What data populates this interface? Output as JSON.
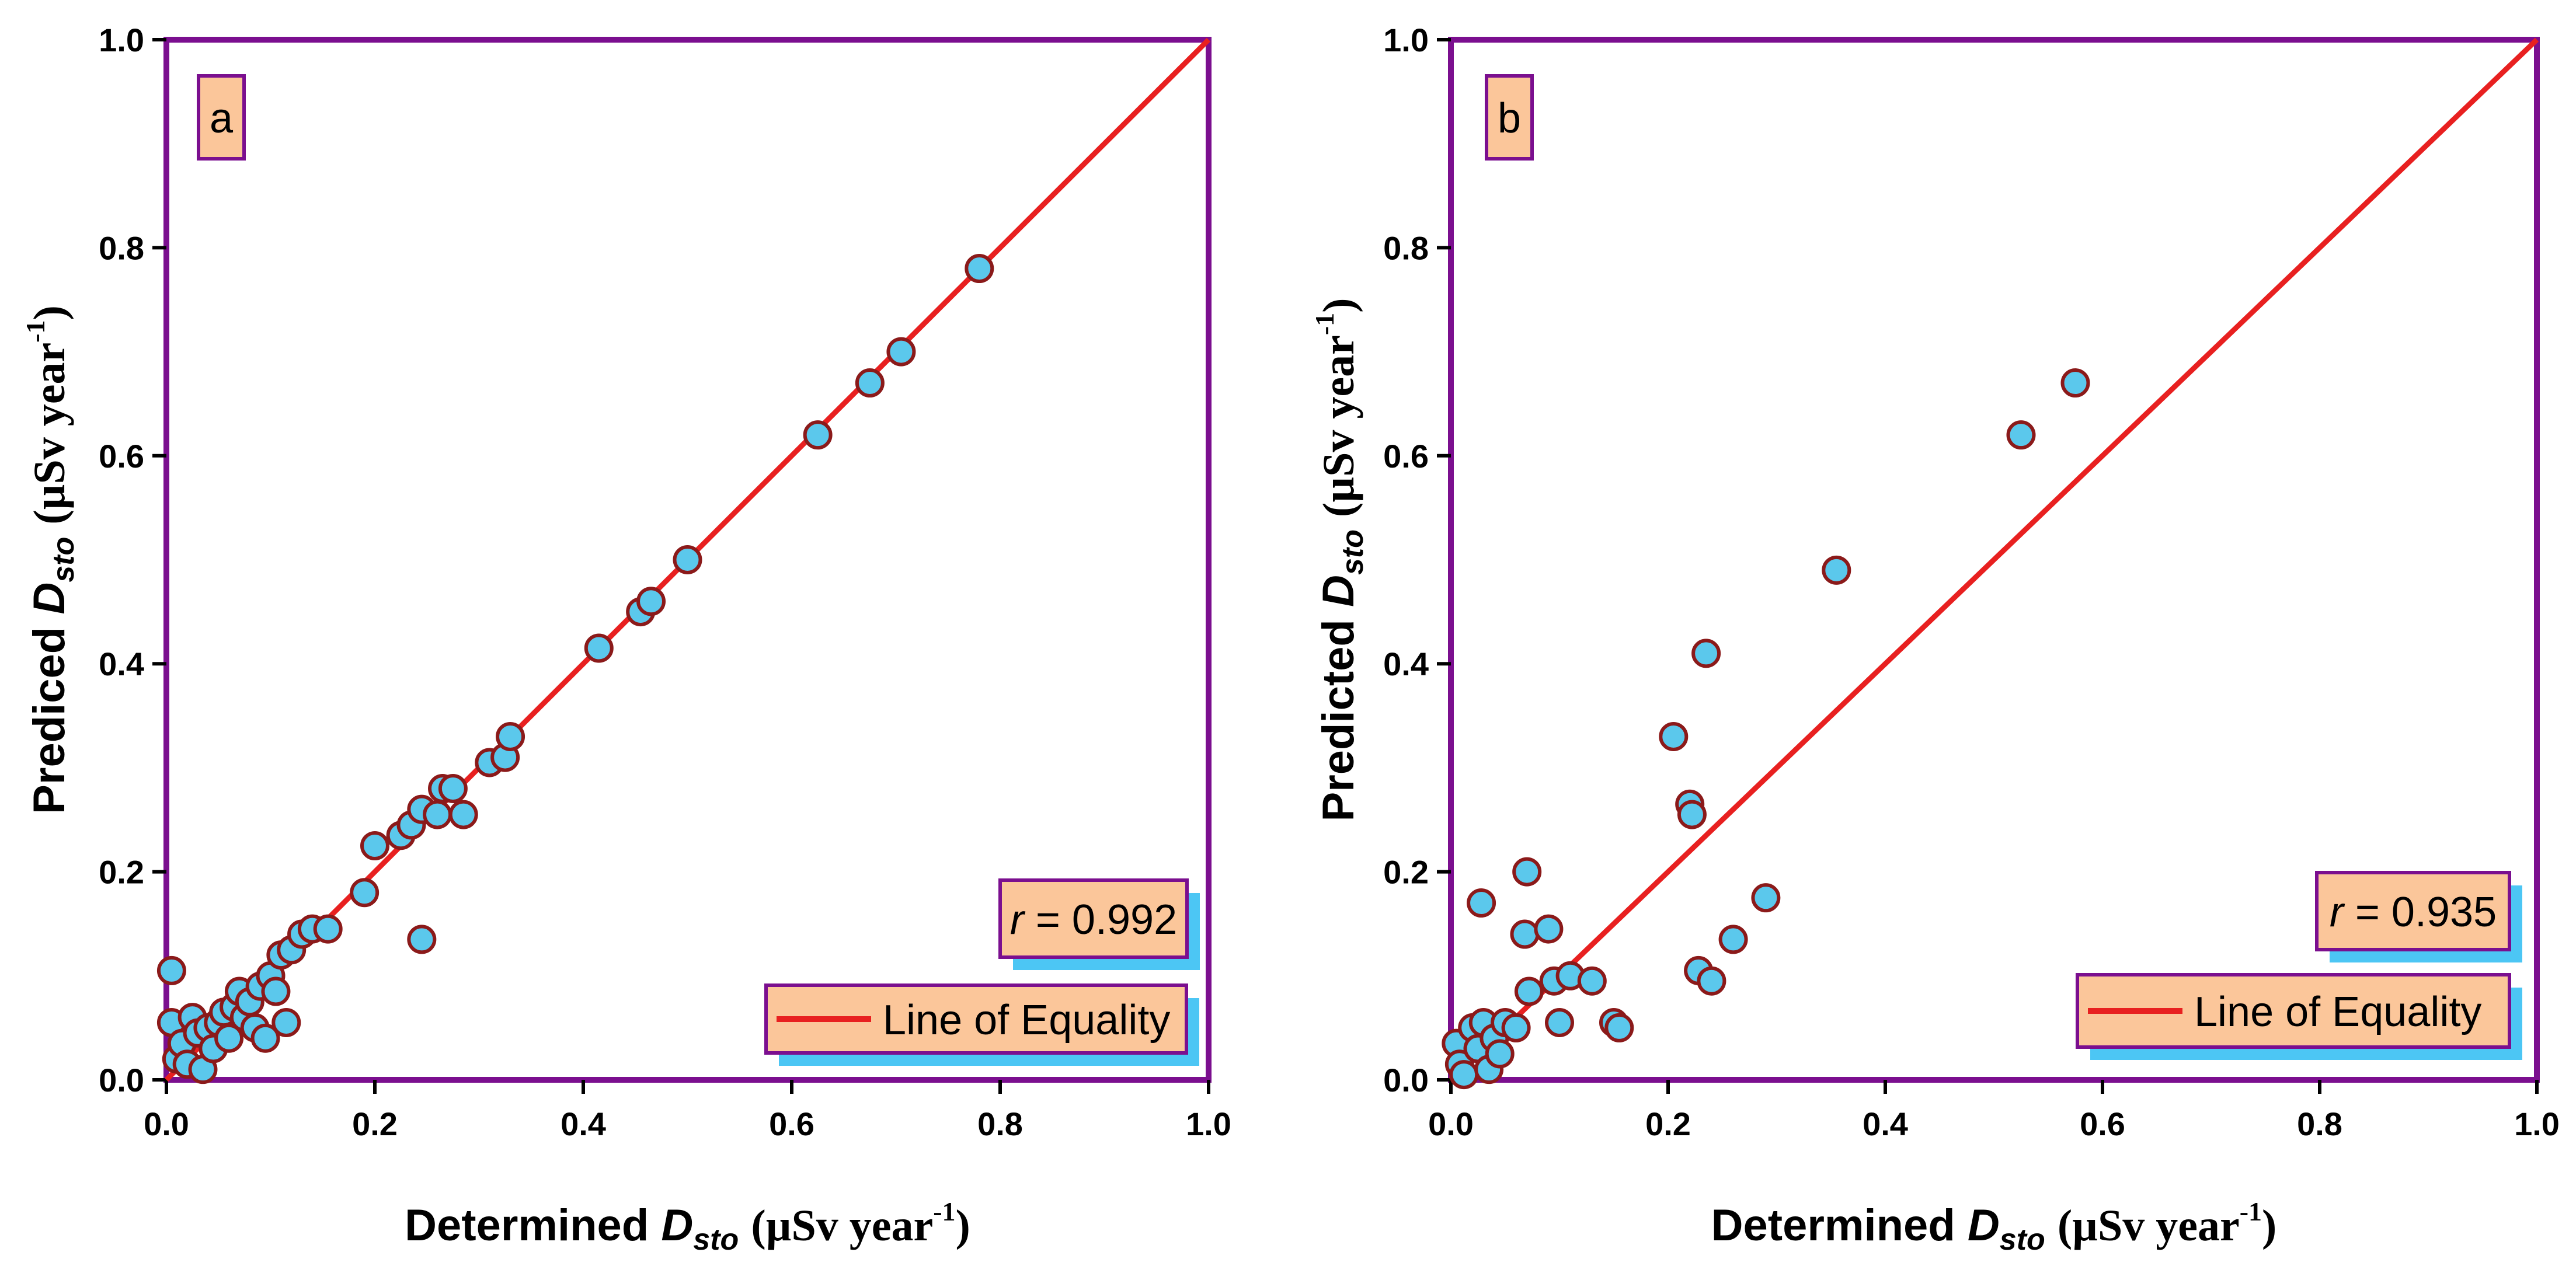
{
  "chart_data": [
    {
      "type": "scatter",
      "panel_label": "a",
      "xlabel_main": "Determined ",
      "xlabel_symbol": "D",
      "xlabel_sub": "sto",
      "xlabel_units": "(µSv year",
      "xlabel_exp": "-1",
      "xlabel_close": ")",
      "ylabel_main": "Prediced ",
      "ylabel_symbol": "D",
      "ylabel_sub": "sto",
      "ylabel_units": "(µSv year",
      "ylabel_exp": "-1",
      "ylabel_close": ")",
      "xlim": [
        0,
        1
      ],
      "ylim": [
        0,
        1
      ],
      "xticks": [
        "0.0",
        "0.2",
        "0.4",
        "0.6",
        "0.8",
        "1.0"
      ],
      "yticks": [
        "0.0",
        "0.2",
        "0.4",
        "0.6",
        "0.8",
        "1.0"
      ],
      "r_symbol": "r",
      "r_text": " = 0.992",
      "legend_label": "Line of Equality",
      "points": [
        [
          0.005,
          0.105
        ],
        [
          0.005,
          0.055
        ],
        [
          0.01,
          0.02
        ],
        [
          0.015,
          0.035
        ],
        [
          0.02,
          0.015
        ],
        [
          0.025,
          0.06
        ],
        [
          0.03,
          0.045
        ],
        [
          0.035,
          0.01
        ],
        [
          0.04,
          0.05
        ],
        [
          0.045,
          0.03
        ],
        [
          0.05,
          0.055
        ],
        [
          0.055,
          0.065
        ],
        [
          0.06,
          0.04
        ],
        [
          0.065,
          0.07
        ],
        [
          0.07,
          0.085
        ],
        [
          0.075,
          0.06
        ],
        [
          0.08,
          0.075
        ],
        [
          0.085,
          0.05
        ],
        [
          0.09,
          0.09
        ],
        [
          0.095,
          0.04
        ],
        [
          0.1,
          0.1
        ],
        [
          0.105,
          0.085
        ],
        [
          0.11,
          0.12
        ],
        [
          0.115,
          0.055
        ],
        [
          0.12,
          0.125
        ],
        [
          0.13,
          0.14
        ],
        [
          0.14,
          0.145
        ],
        [
          0.155,
          0.145
        ],
        [
          0.19,
          0.18
        ],
        [
          0.2,
          0.225
        ],
        [
          0.225,
          0.235
        ],
        [
          0.235,
          0.245
        ],
        [
          0.245,
          0.26
        ],
        [
          0.245,
          0.135
        ],
        [
          0.26,
          0.255
        ],
        [
          0.265,
          0.28
        ],
        [
          0.275,
          0.28
        ],
        [
          0.285,
          0.255
        ],
        [
          0.31,
          0.305
        ],
        [
          0.325,
          0.31
        ],
        [
          0.33,
          0.33
        ],
        [
          0.415,
          0.415
        ],
        [
          0.455,
          0.45
        ],
        [
          0.465,
          0.46
        ],
        [
          0.5,
          0.5
        ],
        [
          0.625,
          0.62
        ],
        [
          0.675,
          0.67
        ],
        [
          0.705,
          0.7
        ],
        [
          0.78,
          0.78
        ]
      ]
    },
    {
      "type": "scatter",
      "panel_label": "b",
      "xlabel_main": "Determined ",
      "xlabel_symbol": "D",
      "xlabel_sub": "sto",
      "xlabel_units": "(µSv year",
      "xlabel_exp": "-1",
      "xlabel_close": ")",
      "ylabel_main": "Predicted ",
      "ylabel_symbol": "D",
      "ylabel_sub": "sto",
      "ylabel_units": "(µSv year",
      "ylabel_exp": "-1",
      "ylabel_close": ")",
      "xlim": [
        0,
        1
      ],
      "ylim": [
        0,
        1
      ],
      "xticks": [
        "0.0",
        "0.2",
        "0.4",
        "0.6",
        "0.8",
        "1.0"
      ],
      "yticks": [
        "0.0",
        "0.2",
        "0.4",
        "0.6",
        "0.8",
        "1.0"
      ],
      "r_symbol": "r",
      "r_text": " = 0.935",
      "legend_label": "Line of Equality",
      "points": [
        [
          0.005,
          0.035
        ],
        [
          0.008,
          0.015
        ],
        [
          0.012,
          0.005
        ],
        [
          0.02,
          0.05
        ],
        [
          0.025,
          0.03
        ],
        [
          0.028,
          0.17
        ],
        [
          0.03,
          0.055
        ],
        [
          0.035,
          0.01
        ],
        [
          0.04,
          0.04
        ],
        [
          0.045,
          0.025
        ],
        [
          0.05,
          0.055
        ],
        [
          0.06,
          0.05
        ],
        [
          0.068,
          0.14
        ],
        [
          0.07,
          0.2
        ],
        [
          0.072,
          0.085
        ],
        [
          0.09,
          0.145
        ],
        [
          0.095,
          0.095
        ],
        [
          0.1,
          0.055
        ],
        [
          0.11,
          0.1
        ],
        [
          0.13,
          0.095
        ],
        [
          0.15,
          0.055
        ],
        [
          0.155,
          0.05
        ],
        [
          0.205,
          0.33
        ],
        [
          0.22,
          0.265
        ],
        [
          0.222,
          0.255
        ],
        [
          0.228,
          0.105
        ],
        [
          0.235,
          0.41
        ],
        [
          0.24,
          0.095
        ],
        [
          0.26,
          0.135
        ],
        [
          0.29,
          0.175
        ],
        [
          0.355,
          0.49
        ],
        [
          0.525,
          0.62
        ],
        [
          0.575,
          0.67
        ]
      ]
    }
  ],
  "colors": {
    "frame": "#7b0f8f",
    "marker_fill": "#5bc8ec",
    "marker_edge": "#8b1a1a",
    "line": "#e82020",
    "box_fill": "#fbc69a",
    "box_shadow": "#4cc6f4"
  }
}
